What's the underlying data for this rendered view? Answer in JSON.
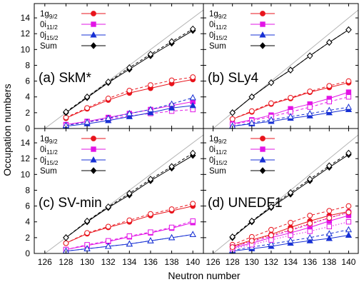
{
  "figure": {
    "ylabel": "Occupation numbers",
    "xlabel": "Neutron number"
  },
  "chart_data": {
    "type": "line",
    "xlim": [
      125,
      141
    ],
    "ylim": [
      0,
      15
    ],
    "xticks": [
      126,
      128,
      130,
      132,
      134,
      136,
      138,
      140
    ],
    "yticks": [
      0,
      2,
      4,
      6,
      8,
      10,
      12,
      14
    ],
    "grid": false,
    "legend_position": "top-left",
    "legend": [
      {
        "main": "1g",
        "sub": "9/2",
        "marker": "circle",
        "color": "#e8141c"
      },
      {
        "main": "0i",
        "sub": "11/2",
        "marker": "square",
        "color": "#e214e6"
      },
      {
        "main": "0j",
        "sub": "15/2",
        "marker": "triangle",
        "color": "#1730d4"
      },
      {
        "main": "Sum",
        "sub": "",
        "marker": "diamond",
        "color": "#000000"
      }
    ],
    "x": [
      128,
      130,
      132,
      134,
      136,
      138,
      140
    ],
    "panels": [
      {
        "label": "(a) SkM*",
        "series": [
          {
            "level": "1g9/2",
            "style": "solid",
            "values": [
              1.3,
              2.5,
              3.6,
              4.5,
              5.1,
              5.7,
              6.2
            ]
          },
          {
            "level": "1g9/2",
            "style": "dashed",
            "values": [
              1.4,
              2.6,
              3.8,
              4.8,
              5.5,
              6.1,
              6.5
            ]
          },
          {
            "level": "0i11/2",
            "style": "solid",
            "values": [
              0.5,
              0.9,
              1.4,
              1.9,
              2.4,
              2.9,
              3.4
            ]
          },
          {
            "level": "0i11/2",
            "style": "dashed",
            "values": [
              0.4,
              0.8,
              1.2,
              1.6,
              1.9,
              2.2,
              2.4
            ]
          },
          {
            "level": "0j15/2",
            "style": "solid",
            "values": [
              0.3,
              0.6,
              1.0,
              1.5,
              2.0,
              2.6,
              2.9
            ]
          },
          {
            "level": "0j15/2",
            "style": "dashed",
            "values": [
              0.4,
              0.8,
              1.3,
              1.9,
              2.4,
              3.1,
              3.9
            ]
          },
          {
            "level": "Sum",
            "style": "solid",
            "values": [
              2.0,
              3.9,
              5.8,
              7.5,
              9.2,
              10.8,
              12.4
            ]
          },
          {
            "level": "Sum",
            "style": "dashed",
            "values": [
              2.1,
              4.0,
              5.9,
              7.7,
              9.4,
              11.0,
              12.6
            ]
          }
        ]
      },
      {
        "label": "(b) SLy4",
        "series": [
          {
            "level": "1g9/2",
            "style": "solid",
            "values": [
              1.2,
              2.1,
              3.1,
              3.8,
              4.6,
              5.2,
              5.8
            ]
          },
          {
            "level": "1g9/2",
            "style": "dashed",
            "values": [
              1.2,
              2.2,
              3.2,
              3.9,
              4.7,
              5.4,
              6.0
            ]
          },
          {
            "level": "0i11/2",
            "style": "solid",
            "values": [
              0.6,
              1.1,
              1.7,
              2.5,
              3.1,
              3.8,
              4.6
            ]
          },
          {
            "level": "0i11/2",
            "style": "dashed",
            "values": [
              0.5,
              1.0,
              1.5,
              2.1,
              2.7,
              3.4,
              4.0
            ]
          },
          {
            "level": "0j15/2",
            "style": "solid",
            "values": [
              0.3,
              0.6,
              0.9,
              1.3,
              1.6,
              2.0,
              2.4
            ]
          },
          {
            "level": "0j15/2",
            "style": "dashed",
            "values": [
              0.3,
              0.7,
              1.1,
              1.5,
              1.9,
              2.3,
              2.7
            ]
          },
          {
            "level": "Sum",
            "style": "solid",
            "values": [
              2.0,
              4.0,
              5.8,
              7.4,
              9.2,
              10.9,
              12.5
            ]
          },
          {
            "level": "Sum",
            "style": "dashed",
            "values": [
              2.0,
              4.0,
              5.8,
              7.4,
              9.2,
              10.9,
              12.5
            ]
          }
        ]
      },
      {
        "label": "(c) SV-min",
        "series": [
          {
            "level": "1g9/2",
            "style": "solid",
            "values": [
              1.3,
              2.5,
              3.3,
              4.0,
              4.8,
              5.4,
              6.0
            ]
          },
          {
            "level": "1g9/2",
            "style": "dashed",
            "values": [
              1.3,
              2.6,
              3.4,
              4.2,
              5.0,
              5.6,
              6.3
            ]
          },
          {
            "level": "0i11/2",
            "style": "solid",
            "values": [
              0.5,
              1.0,
              1.5,
              2.1,
              2.6,
              3.2,
              3.9
            ]
          },
          {
            "level": "0i11/2",
            "style": "dashed",
            "values": [
              0.5,
              1.1,
              1.6,
              2.2,
              2.7,
              3.3,
              4.1
            ]
          },
          {
            "level": "0j15/2",
            "style": "solid",
            "values": [
              0.3,
              0.6,
              0.9,
              1.2,
              1.6,
              2.0,
              2.4
            ]
          },
          {
            "level": "0j15/2",
            "style": "dashed",
            "values": [
              0.3,
              0.6,
              0.9,
              1.2,
              1.6,
              2.0,
              2.4
            ]
          },
          {
            "level": "Sum",
            "style": "solid",
            "values": [
              2.0,
              4.0,
              5.8,
              7.4,
              9.2,
              10.8,
              12.4
            ]
          },
          {
            "level": "Sum",
            "style": "dashed",
            "values": [
              2.0,
              4.1,
              5.9,
              7.6,
              9.4,
              11.0,
              12.7
            ]
          }
        ]
      },
      {
        "label": "(d) UNEDF1",
        "series": [
          {
            "level": "1g9/2",
            "style": "solid",
            "values": [
              0.9,
              1.7,
              2.4,
              3.3,
              4.1,
              4.8,
              5.3
            ]
          },
          {
            "level": "1g9/2",
            "style": "dashed",
            "values": [
              1.1,
              2.1,
              3.0,
              3.9,
              4.8,
              5.4,
              6.0
            ]
          },
          {
            "level": "0i11/2",
            "style": "solid",
            "values": [
              0.7,
              1.3,
              2.0,
              2.6,
              3.3,
              4.1,
              4.8
            ]
          },
          {
            "level": "0i11/2",
            "style": "dashed",
            "values": [
              0.8,
              1.5,
              2.2,
              2.9,
              3.7,
              4.5,
              5.2
            ]
          },
          {
            "level": "0j15/2",
            "style": "solid",
            "values": [
              0.3,
              0.6,
              0.9,
              1.3,
              1.6,
              1.9,
              2.3
            ]
          },
          {
            "level": "0j15/2",
            "style": "dashed",
            "values": [
              0.4,
              0.8,
              1.2,
              1.6,
              2.0,
              2.5,
              3.0
            ]
          },
          {
            "level": "0i11/2",
            "style": "dotted",
            "values": [
              0.6,
              1.1,
              1.7,
              2.3,
              2.8,
              3.4,
              4.0
            ]
          },
          {
            "level": "1g9/2",
            "style": "dotted",
            "values": [
              0.8,
              1.6,
              2.3,
              3.0,
              3.8,
              4.5,
              5.2
            ]
          },
          {
            "level": "Sum",
            "style": "solid",
            "values": [
              2.0,
              4.0,
              5.8,
              7.5,
              9.2,
              10.9,
              12.5
            ]
          },
          {
            "level": "Sum",
            "style": "dashed",
            "values": [
              2.1,
              4.1,
              5.9,
              7.7,
              9.4,
              11.1,
              12.7
            ]
          }
        ]
      }
    ]
  }
}
